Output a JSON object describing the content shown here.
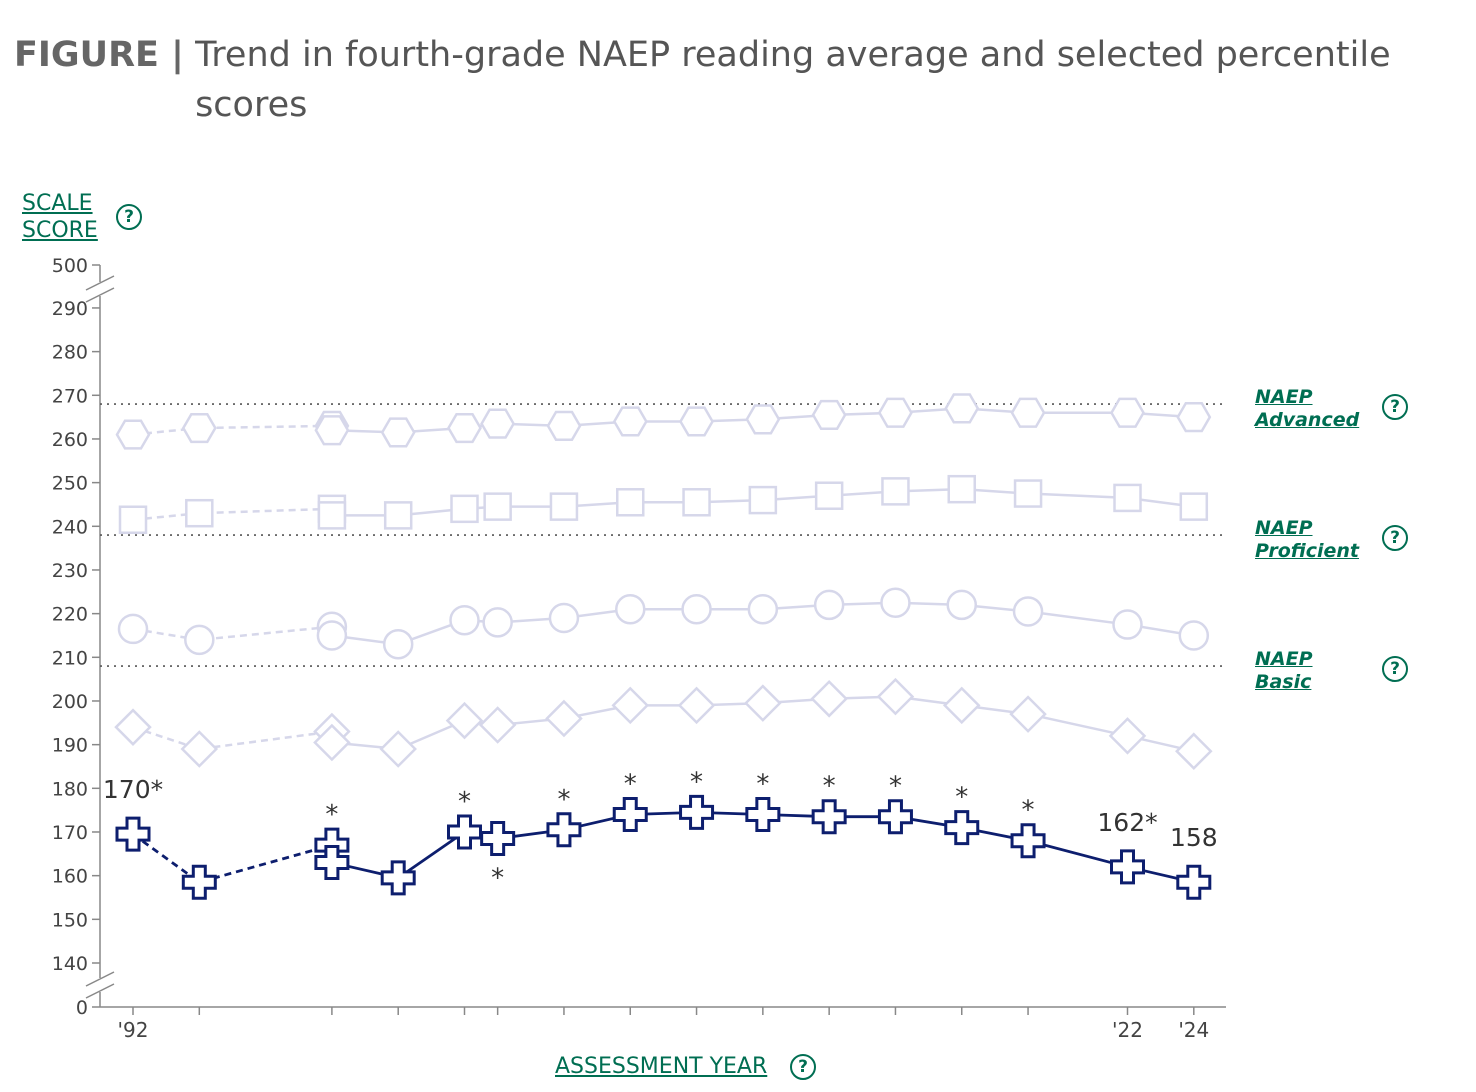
{
  "figure": {
    "lead": "FIGURE |",
    "title": "Trend in fourth-grade NAEP reading average and selected percentile scores"
  },
  "axes": {
    "ylabel_line1": "SCALE",
    "ylabel_line2": "SCORE",
    "xlabel": "ASSESSMENT YEAR",
    "help_glyph": "?"
  },
  "achievement_levels": [
    {
      "line1": "NAEP",
      "line2": "Advanced",
      "value": 268
    },
    {
      "line1": "NAEP",
      "line2": "Proficient",
      "value": 238
    },
    {
      "line1": "NAEP",
      "line2": "Basic",
      "value": 208
    }
  ],
  "chart_data": {
    "type": "line",
    "y_ticks": [
      0,
      140,
      150,
      160,
      170,
      180,
      190,
      200,
      210,
      220,
      230,
      240,
      250,
      260,
      270,
      280,
      290,
      500
    ],
    "ylim": [
      140,
      290
    ],
    "y_axis_breaks": "0 below 140, 500 above 290",
    "x_tick_labels": [
      {
        "x": 1992,
        "label": "'92"
      },
      {
        "x": 1994,
        "label": ""
      },
      {
        "x": 1998,
        "label": ""
      },
      {
        "x": 2000,
        "label": ""
      },
      {
        "x": 2002,
        "label": ""
      },
      {
        "x": 2003,
        "label": ""
      },
      {
        "x": 2005,
        "label": ""
      },
      {
        "x": 2007,
        "label": ""
      },
      {
        "x": 2009,
        "label": ""
      },
      {
        "x": 2011,
        "label": ""
      },
      {
        "x": 2013,
        "label": ""
      },
      {
        "x": 2015,
        "label": ""
      },
      {
        "x": 2017,
        "label": ""
      },
      {
        "x": 2019,
        "label": ""
      },
      {
        "x": 2022,
        "label": "'22"
      },
      {
        "x": 2024,
        "label": "'24"
      }
    ],
    "accommodations_not_permitted": [
      1992,
      1994,
      1998
    ],
    "series": [
      {
        "marker": "hexagon",
        "color": "#d6d7ea",
        "points_not_permitted": [
          [
            1992,
            261
          ],
          [
            1994,
            262.5
          ],
          [
            1998,
            263
          ]
        ],
        "points": [
          [
            1998,
            262
          ],
          [
            2000,
            261.5
          ],
          [
            2002,
            262.5
          ],
          [
            2003,
            263.5
          ],
          [
            2005,
            263
          ],
          [
            2007,
            264
          ],
          [
            2009,
            264
          ],
          [
            2011,
            264.5
          ],
          [
            2013,
            265.5
          ],
          [
            2015,
            266
          ],
          [
            2017,
            267
          ],
          [
            2019,
            266
          ],
          [
            2022,
            266
          ],
          [
            2024,
            265
          ]
        ]
      },
      {
        "marker": "square",
        "color": "#d6d7ea",
        "points_not_permitted": [
          [
            1992,
            241.5
          ],
          [
            1994,
            243
          ],
          [
            1998,
            244
          ]
        ],
        "points": [
          [
            1998,
            242.5
          ],
          [
            2000,
            242.5
          ],
          [
            2002,
            244
          ],
          [
            2003,
            244.5
          ],
          [
            2005,
            244.5
          ],
          [
            2007,
            245.5
          ],
          [
            2009,
            245.5
          ],
          [
            2011,
            246
          ],
          [
            2013,
            247
          ],
          [
            2015,
            248
          ],
          [
            2017,
            248.5
          ],
          [
            2019,
            247.5
          ],
          [
            2022,
            246.5
          ],
          [
            2024,
            244.5
          ]
        ]
      },
      {
        "marker": "circle",
        "color": "#d6d7ea",
        "points_not_permitted": [
          [
            1992,
            216.5
          ],
          [
            1994,
            214
          ],
          [
            1998,
            217
          ]
        ],
        "points": [
          [
            1998,
            215
          ],
          [
            2000,
            213
          ],
          [
            2002,
            218.5
          ],
          [
            2003,
            218
          ],
          [
            2005,
            219
          ],
          [
            2007,
            221
          ],
          [
            2009,
            221
          ],
          [
            2011,
            221
          ],
          [
            2013,
            222
          ],
          [
            2015,
            222.5
          ],
          [
            2017,
            222
          ],
          [
            2019,
            220.5
          ],
          [
            2022,
            217.5
          ],
          [
            2024,
            215
          ]
        ]
      },
      {
        "marker": "diamond",
        "color": "#d6d7ea",
        "points_not_permitted": [
          [
            1992,
            194
          ],
          [
            1994,
            189
          ],
          [
            1998,
            193
          ]
        ],
        "points": [
          [
            1998,
            190.5
          ],
          [
            2000,
            189
          ],
          [
            2002,
            195.5
          ],
          [
            2003,
            194.5
          ],
          [
            2005,
            196
          ],
          [
            2007,
            199
          ],
          [
            2009,
            199
          ],
          [
            2011,
            199.5
          ],
          [
            2013,
            200.5
          ],
          [
            2015,
            201
          ],
          [
            2017,
            199
          ],
          [
            2019,
            197
          ],
          [
            2022,
            192
          ],
          [
            2024,
            188.5
          ]
        ]
      },
      {
        "marker": "cross",
        "color": "#0d1e6e",
        "points_not_permitted": [
          [
            1992,
            169.5
          ],
          [
            1994,
            158.5
          ],
          [
            1998,
            167
          ]
        ],
        "points": [
          [
            1998,
            163
          ],
          [
            2000,
            159.5
          ],
          [
            2002,
            170
          ],
          [
            2003,
            168.5
          ],
          [
            2005,
            170.5
          ],
          [
            2007,
            174
          ],
          [
            2009,
            174.5
          ],
          [
            2011,
            174
          ],
          [
            2013,
            173.5
          ],
          [
            2015,
            173.5
          ],
          [
            2017,
            171
          ],
          [
            2019,
            168
          ],
          [
            2022,
            162
          ],
          [
            2024,
            158.5
          ]
        ]
      }
    ],
    "annotations": [
      {
        "x": 1992,
        "y": 169.5,
        "text": "170*",
        "pos": "above"
      },
      {
        "x": 1998,
        "y": 167,
        "text": "*",
        "pos": "above"
      },
      {
        "x": 2002,
        "y": 170,
        "text": "*",
        "pos": "above"
      },
      {
        "x": 2003,
        "y": 168.5,
        "text": "*",
        "pos": "below"
      },
      {
        "x": 2005,
        "y": 170.5,
        "text": "*",
        "pos": "above"
      },
      {
        "x": 2007,
        "y": 174,
        "text": "*",
        "pos": "above"
      },
      {
        "x": 2009,
        "y": 174.5,
        "text": "*",
        "pos": "above"
      },
      {
        "x": 2011,
        "y": 174,
        "text": "*",
        "pos": "above"
      },
      {
        "x": 2013,
        "y": 173.5,
        "text": "*",
        "pos": "above"
      },
      {
        "x": 2015,
        "y": 173.5,
        "text": "*",
        "pos": "above"
      },
      {
        "x": 2017,
        "y": 171,
        "text": "*",
        "pos": "above"
      },
      {
        "x": 2019,
        "y": 168,
        "text": "*",
        "pos": "above"
      },
      {
        "x": 2022,
        "y": 162,
        "text": "162*",
        "pos": "above"
      },
      {
        "x": 2024,
        "y": 158.5,
        "text": "158",
        "pos": "above"
      }
    ]
  }
}
